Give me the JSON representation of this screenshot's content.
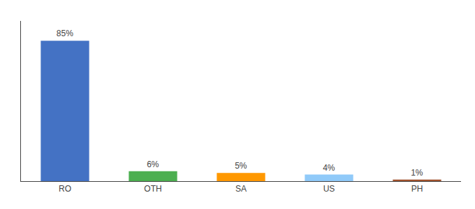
{
  "chart_data": {
    "type": "bar",
    "categories": [
      "RO",
      "OTH",
      "SA",
      "US",
      "PH"
    ],
    "values": [
      85,
      6,
      5,
      4,
      1
    ],
    "value_labels": [
      "85%",
      "6%",
      "5%",
      "4%",
      "1%"
    ],
    "data_labels": true,
    "colors": [
      "#4472c4",
      "#4caf50",
      "#ff9800",
      "#90caf9",
      "#a0522d"
    ],
    "ylim": [
      0,
      97
    ],
    "grid": false,
    "tick_labels": "x"
  }
}
